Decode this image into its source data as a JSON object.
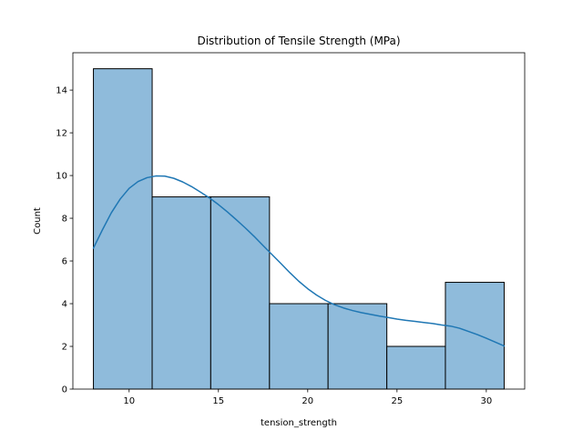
{
  "chart_data": {
    "type": "bar",
    "title": "Distribution of Tensile Strength (MPa)",
    "xlabel": "tension_strength",
    "ylabel": "Count",
    "xlim": [
      6.85,
      32.15
    ],
    "ylim": [
      0,
      15.75
    ],
    "xticks": [
      10,
      15,
      20,
      25,
      30
    ],
    "yticks": [
      0,
      2,
      4,
      6,
      8,
      10,
      12,
      14
    ],
    "bins": [
      {
        "start": 8.0,
        "end": 11.29,
        "count": 15
      },
      {
        "start": 11.29,
        "end": 14.57,
        "count": 9
      },
      {
        "start": 14.57,
        "end": 17.86,
        "count": 9
      },
      {
        "start": 17.86,
        "end": 21.14,
        "count": 4
      },
      {
        "start": 21.14,
        "end": 24.43,
        "count": 4
      },
      {
        "start": 24.43,
        "end": 27.71,
        "count": 2
      },
      {
        "start": 27.71,
        "end": 31.0,
        "count": 5
      }
    ],
    "kde": {
      "x": [
        8.0,
        8.5,
        9.0,
        9.5,
        10.0,
        10.5,
        11.0,
        11.5,
        12.0,
        12.5,
        13.0,
        13.5,
        14.0,
        14.5,
        15.0,
        15.5,
        16.0,
        16.5,
        17.0,
        17.5,
        18.0,
        18.5,
        19.0,
        19.5,
        20.0,
        20.5,
        21.0,
        21.5,
        22.0,
        22.5,
        23.0,
        23.5,
        24.0,
        24.5,
        25.0,
        25.5,
        26.0,
        26.5,
        27.0,
        27.5,
        28.0,
        28.5,
        29.0,
        29.5,
        30.0,
        30.5,
        31.0
      ],
      "y": [
        6.6,
        7.45,
        8.25,
        8.9,
        9.4,
        9.72,
        9.9,
        9.98,
        9.97,
        9.87,
        9.7,
        9.48,
        9.22,
        8.95,
        8.64,
        8.3,
        7.93,
        7.55,
        7.15,
        6.72,
        6.3,
        5.88,
        5.45,
        5.05,
        4.7,
        4.4,
        4.15,
        3.95,
        3.8,
        3.68,
        3.58,
        3.5,
        3.42,
        3.35,
        3.28,
        3.22,
        3.17,
        3.12,
        3.07,
        3.0,
        2.95,
        2.85,
        2.7,
        2.55,
        2.38,
        2.2,
        2.02
      ]
    },
    "colors": {
      "bar_fill": "#8fbbdb",
      "bar_edge": "#000000",
      "kde_line": "#1f77b4"
    },
    "grid": false,
    "legend": "none"
  }
}
